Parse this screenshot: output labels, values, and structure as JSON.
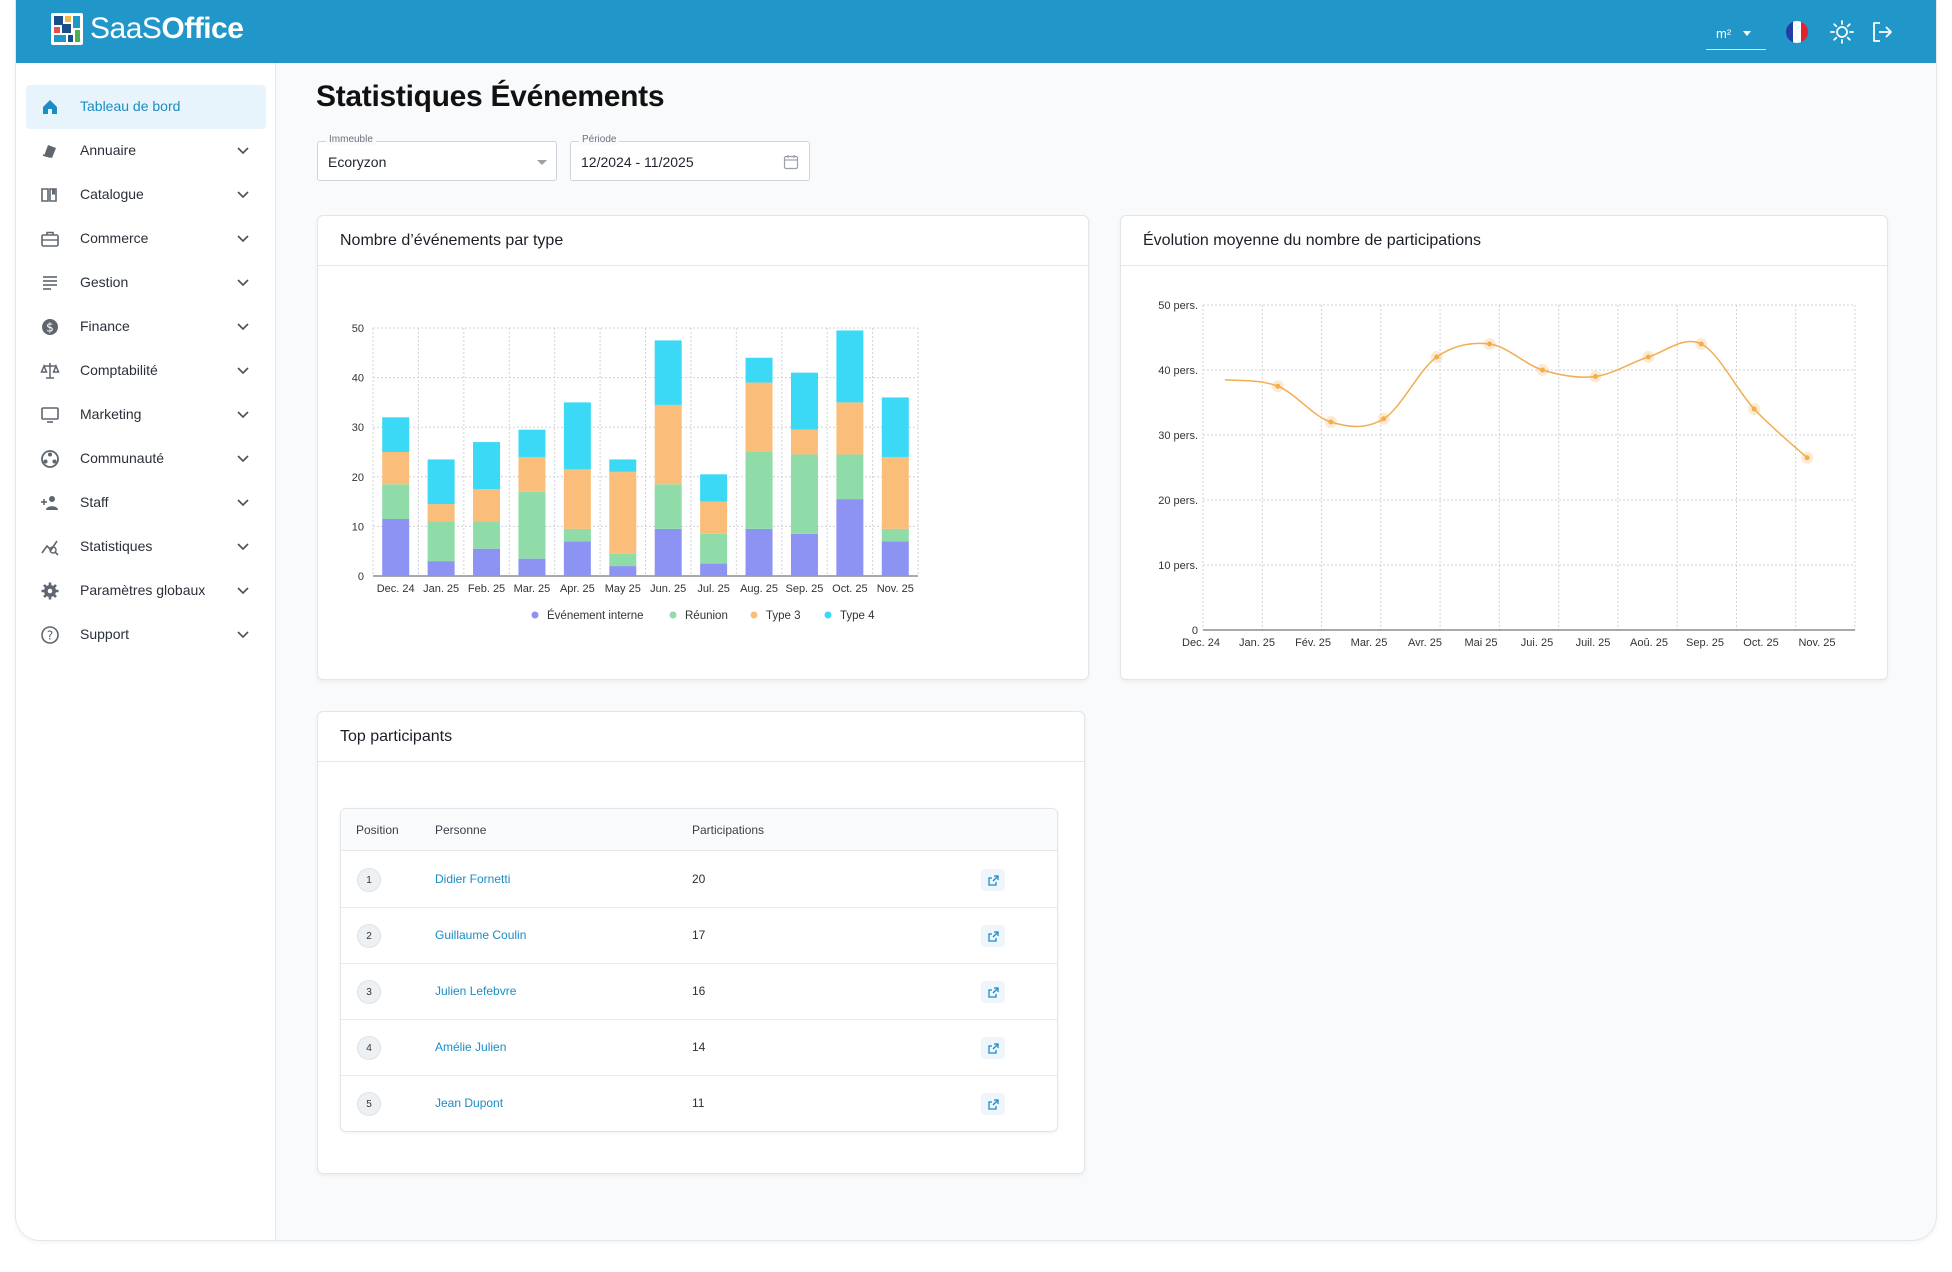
{
  "app": {
    "logo_text_a": "SaaS",
    "logo_text_b": "Office",
    "unit": "m²",
    "colors": {
      "topbar": "#2196c8",
      "accent": "#1b8cc4"
    }
  },
  "sidebar": {
    "items": [
      {
        "label": "Tableau de bord",
        "icon": "home-icon",
        "active": true
      },
      {
        "label": "Annuaire",
        "icon": "directory-icon"
      },
      {
        "label": "Catalogue",
        "icon": "book-icon"
      },
      {
        "label": "Commerce",
        "icon": "briefcase-icon"
      },
      {
        "label": "Gestion",
        "icon": "list-icon"
      },
      {
        "label": "Finance",
        "icon": "dollar-icon"
      },
      {
        "label": "Comptabilité",
        "icon": "scale-icon"
      },
      {
        "label": "Marketing",
        "icon": "monitor-icon"
      },
      {
        "label": "Communauté",
        "icon": "community-icon"
      },
      {
        "label": "Staff",
        "icon": "add-person-icon"
      },
      {
        "label": "Statistiques",
        "icon": "stats-icon"
      },
      {
        "label": "Paramètres globaux",
        "icon": "gear-icon"
      },
      {
        "label": "Support",
        "icon": "help-icon"
      }
    ]
  },
  "page": {
    "title": "Statistiques Événements"
  },
  "filters": {
    "building_label": "Immeuble",
    "building_value": "Ecoryzon",
    "period_label": "Période",
    "period_value": "12/2024 - 11/2025"
  },
  "bar_card": {
    "title": "Nombre d’événements par type"
  },
  "line_card": {
    "title": "Évolution moyenne du nombre de participations"
  },
  "top_card": {
    "title": "Top participants"
  },
  "table": {
    "headers": {
      "position": "Position",
      "person": "Personne",
      "participations": "Participations"
    },
    "rows": [
      {
        "position": "1",
        "person": "Didier Fornetti",
        "participations": "20"
      },
      {
        "position": "2",
        "person": "Guillaume Coulin",
        "participations": "17"
      },
      {
        "position": "3",
        "person": "Julien Lefebvre",
        "participations": "16"
      },
      {
        "position": "4",
        "person": "Amélie Julien",
        "participations": "14"
      },
      {
        "position": "5",
        "person": "Jean Dupont",
        "participations": "11"
      }
    ]
  },
  "chart_data": [
    {
      "type": "bar",
      "stacked": true,
      "title": "Nombre d’événements par type",
      "categories": [
        "Dec. 24",
        "Jan. 25",
        "Feb. 25",
        "Mar. 25",
        "Apr. 25",
        "May 25",
        "Jun. 25",
        "Jul. 25",
        "Aug. 25",
        "Sep. 25",
        "Oct. 25",
        "Nov. 25"
      ],
      "series": [
        {
          "name": "Événement interne",
          "color": "#8c93f2",
          "values": [
            11.5,
            3,
            5.5,
            3.5,
            7,
            2,
            9.5,
            2.5,
            9.5,
            8.5,
            15.5,
            7
          ]
        },
        {
          "name": "Réunion",
          "color": "#8fdca9",
          "values": [
            7,
            8,
            5.5,
            13.5,
            2.5,
            2.5,
            9,
            6,
            15.5,
            16,
            9,
            2.5
          ]
        },
        {
          "name": "Type 3",
          "color": "#fbbe7a",
          "values": [
            6.5,
            3.5,
            6.5,
            7,
            12,
            16.5,
            16,
            6.5,
            14,
            5,
            10.5,
            14.5
          ]
        },
        {
          "name": "Type 4",
          "color": "#3bd9f5",
          "values": [
            7,
            9,
            9.5,
            5.5,
            13.5,
            2.5,
            13,
            5.5,
            5,
            11.5,
            14.5,
            12
          ]
        }
      ],
      "ylim": [
        0,
        50
      ],
      "yticks": [
        0,
        10,
        20,
        30,
        40,
        50
      ],
      "grid": true,
      "legend": "bottom"
    },
    {
      "type": "line",
      "title": "Évolution moyenne du nombre de participations",
      "x": [
        "Dec. 24",
        "Jan. 25",
        "Fév. 25",
        "Mar. 25",
        "Avr. 25",
        "Mai 25",
        "Jui. 25",
        "Juil. 25",
        "Aoû. 25",
        "Sep. 25",
        "Oct. 25",
        "Nov. 25"
      ],
      "first_value": 38.5,
      "series": [
        {
          "color": "#f2ad4e",
          "values": [
            38.5,
            37.5,
            32,
            32.5,
            42,
            44,
            40,
            39,
            42,
            44,
            34,
            26.5
          ]
        }
      ],
      "yticks": [
        0,
        10,
        20,
        30,
        40,
        50
      ],
      "ytick_labels": [
        "0",
        "10 pers.",
        "20 pers.",
        "30 pers.",
        "40 pers.",
        "50 pers."
      ],
      "ylim": [
        0,
        50
      ],
      "grid": true
    }
  ]
}
